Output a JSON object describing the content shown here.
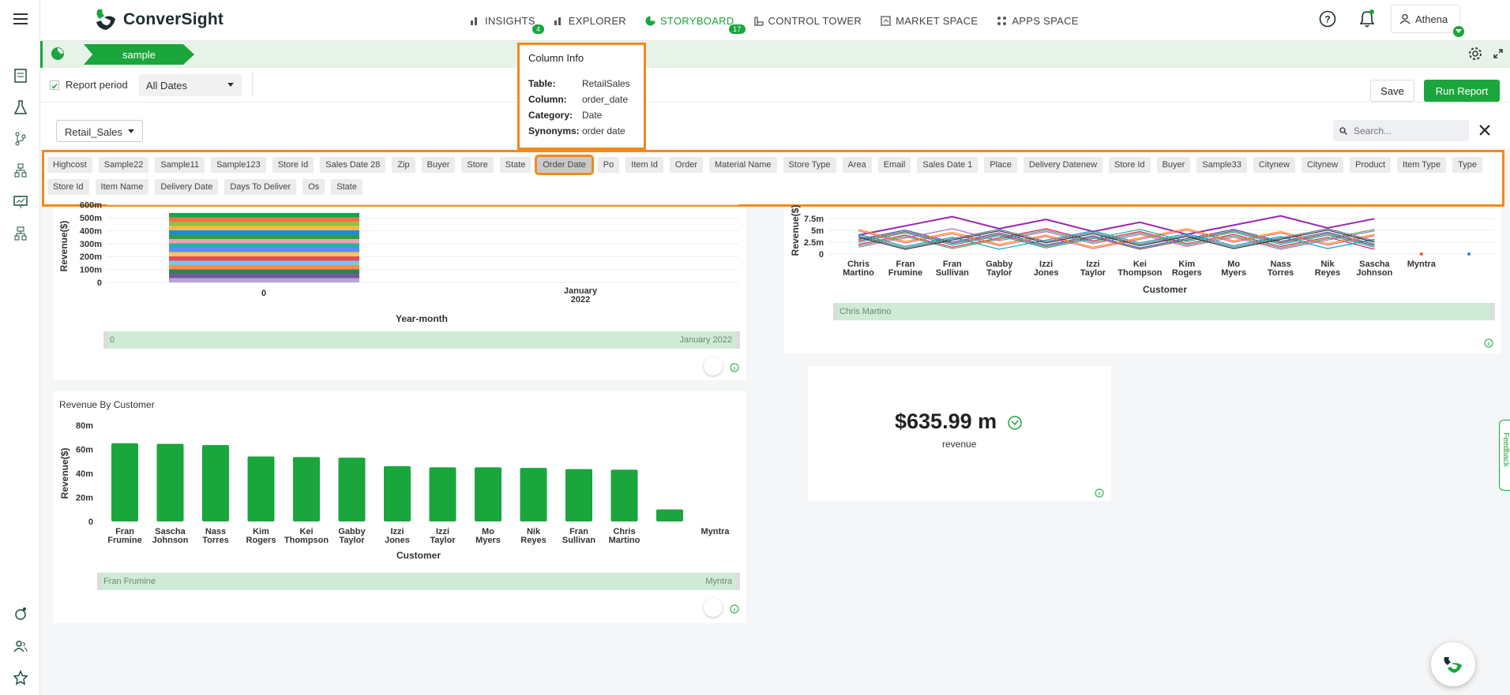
{
  "brand": {
    "name": "ConverSight",
    "green": "#1aa63c",
    "highlight": "#f08a1c"
  },
  "nav": [
    {
      "label": "INSIGHTS",
      "badge": "4",
      "icon": "bar-chart-icon"
    },
    {
      "label": "EXPLORER",
      "badge": "",
      "icon": "bar-chart-icon"
    },
    {
      "label": "STORYBOARD",
      "badge": "17",
      "icon": "pie-chart-icon",
      "active": true
    },
    {
      "label": "CONTROL TOWER",
      "badge": "",
      "icon": "tower-icon"
    },
    {
      "label": "MARKET SPACE",
      "badge": "",
      "icon": "market-icon"
    },
    {
      "label": "APPS SPACE",
      "badge": "",
      "icon": "grid-icon"
    }
  ],
  "user": {
    "name": "Athena"
  },
  "story": {
    "tab_label": "sample"
  },
  "filter": {
    "report_period_label": "Report period",
    "date_value": "All Dates",
    "save_label": "Save",
    "run_label": "Run Report"
  },
  "panel": {
    "dataset": "Retail_Sales",
    "search_placeholder": "Search..."
  },
  "columns": [
    "Highcost",
    "Sample22",
    "Sample11",
    "Sample123",
    "Store Id",
    "Sales Date 28",
    "Zip",
    "Buyer",
    "Store",
    "State",
    "Order Date",
    "Po",
    "Item Id",
    "Order",
    "Material Name",
    "Store Type",
    "Area",
    "Email",
    "Sales Date 1",
    "Place",
    "Delivery Datenew",
    "Store Id",
    "Buyer",
    "Sample33",
    "Citynew",
    "Citynew",
    "Product",
    "Item Type",
    "Type",
    "Store Id",
    "Item Name",
    "Delivery Date",
    "Days To Deliver",
    "Os",
    "State"
  ],
  "column_info": {
    "title": "Column Info",
    "rows": [
      {
        "k": "Table:",
        "v": "RetailSales"
      },
      {
        "k": "Column:",
        "v": "order_date"
      },
      {
        "k": "Category:",
        "v": "Date"
      },
      {
        "k": "Synonyms:",
        "v": "order date"
      }
    ]
  },
  "chart1": {
    "ylabel": "Revenue($)",
    "xlabel": "Year-month",
    "yticks": [
      "0",
      "100m",
      "200m",
      "300m",
      "400m",
      "500m",
      "600m"
    ],
    "xticks": [
      "0",
      "January\n2022"
    ],
    "range_start": "0",
    "range_end": "January 2022"
  },
  "chart2": {
    "ylabel": "Revenue($)",
    "xlabel": "Customer",
    "yticks": [
      "0",
      "2.5m",
      "5m",
      "7.5m"
    ],
    "categories": [
      "Chris Martino",
      "Fran Frumine",
      "Fran Sullivan",
      "Gabby Taylor",
      "Izzi Jones",
      "Izzi Taylor",
      "Kei Thompson",
      "Kim Rogers",
      "Mo Myers",
      "Nass Torres",
      "Nik Reyes",
      "Sascha Johnson",
      "Myntra"
    ],
    "range_start": "Chris Martino"
  },
  "chart_data": {
    "type": "bar",
    "title": "Revenue By Customer",
    "xlabel": "Customer",
    "ylabel": "Revenue($)",
    "ylim": [
      0,
      80
    ],
    "yticks": [
      "0",
      "20m",
      "40m",
      "60m",
      "80m"
    ],
    "categories": [
      "Fran Frumine",
      "Sascha Johnson",
      "Nass Torres",
      "Kim Rogers",
      "Kei Thompson",
      "Gabby Taylor",
      "Izzi Jones",
      "Izzi Taylor",
      "Mo Myers",
      "Nik Reyes",
      "Fran Sullivan",
      "Chris Martino",
      "",
      "Myntra"
    ],
    "values": [
      65,
      64.5,
      63.5,
      54,
      53.5,
      53,
      46,
      45,
      45,
      44.5,
      43.5,
      43,
      10,
      0
    ],
    "range_start": "Fran Frumine",
    "range_end": "Myntra"
  },
  "kpi": {
    "value": "$635.99 m",
    "label": "revenue"
  },
  "feedback_label": "Feedback"
}
